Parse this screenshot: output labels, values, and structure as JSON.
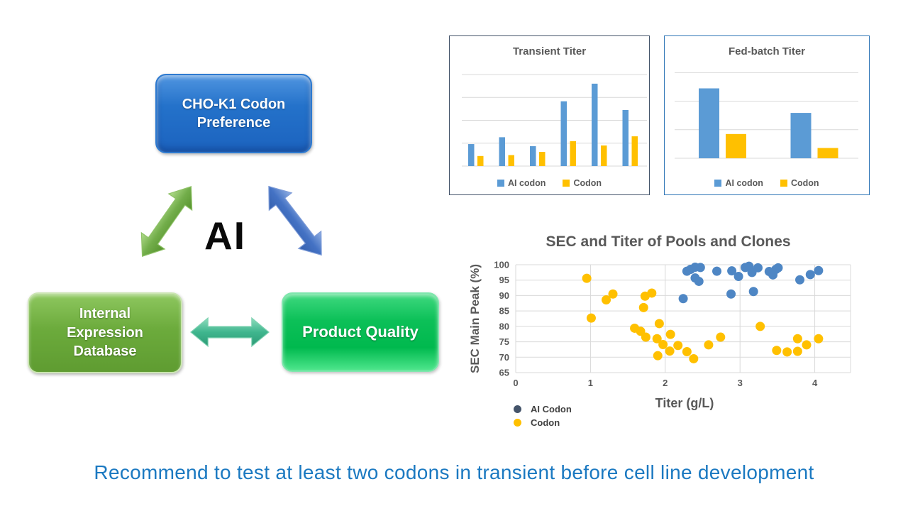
{
  "diagram": {
    "ai_label": "AI",
    "boxes": [
      {
        "id": "cho",
        "label": "CHO-K1 Codon Preference",
        "color": "#2472ca"
      },
      {
        "id": "internal",
        "label": "Internal Expression Database",
        "color": "#6cab3c"
      },
      {
        "id": "product",
        "label": "Product Quality",
        "color": "#0cc058"
      }
    ],
    "arrows": [
      {
        "name": "green-double-arrow",
        "color": "#72ad4a"
      },
      {
        "name": "blue-double-arrow",
        "color": "#4472c4"
      },
      {
        "name": "teal-double-arrow",
        "color": "#3fb68e"
      }
    ]
  },
  "chart_data": [
    {
      "type": "bar",
      "title": "Transient Titer",
      "categories": [
        "",
        "",
        "",
        "",
        "",
        ""
      ],
      "series": [
        {
          "name": "AI codon",
          "color": "#5b9bd5",
          "values": [
            0.96,
            1.26,
            0.87,
            2.83,
            3.6,
            2.45
          ]
        },
        {
          "name": "Codon",
          "color": "#ffc000",
          "values": [
            0.44,
            0.48,
            0.62,
            1.09,
            0.9,
            1.3
          ]
        }
      ],
      "ylim": [
        0,
        4
      ],
      "value_units": "relative (no axis labels shown, gridline spacing = 1)",
      "grid": true,
      "legend_position": "bottom"
    },
    {
      "type": "bar",
      "title": "Fed-batch Titer",
      "categories": [
        "",
        ""
      ],
      "series": [
        {
          "name": "AI codon",
          "color": "#5b9bd5",
          "values": [
            2.45,
            1.59
          ]
        },
        {
          "name": "Codon",
          "color": "#ffc000",
          "values": [
            0.85,
            0.36
          ]
        }
      ],
      "ylim": [
        0,
        3
      ],
      "value_units": "relative (no axis labels shown, gridline spacing = 1)",
      "grid": true,
      "legend_position": "bottom"
    },
    {
      "type": "scatter",
      "title": "SEC and Titer of Pools and Clones",
      "xlabel": "Titer (g/L)",
      "ylabel": "SEC Main Peak (%)",
      "xlim": [
        0,
        4.48
      ],
      "ylim": [
        65,
        100
      ],
      "xticks": [
        0,
        1,
        2,
        3,
        4
      ],
      "yticks": [
        65,
        70,
        75,
        80,
        85,
        90,
        95,
        100
      ],
      "grid": true,
      "legend_position": "bottom-left",
      "series": [
        {
          "name": "AI Codon",
          "color": "#4e86c4",
          "legend_color": "#44546a",
          "points": [
            [
              2.24,
              89.0
            ],
            [
              2.29,
              97.9
            ],
            [
              2.34,
              98.5
            ],
            [
              2.4,
              99.2
            ],
            [
              2.47,
              99.1
            ],
            [
              2.4,
              95.7
            ],
            [
              2.45,
              94.6
            ],
            [
              2.69,
              97.9
            ],
            [
              2.88,
              90.5
            ],
            [
              2.89,
              98.0
            ],
            [
              2.98,
              96.2
            ],
            [
              3.07,
              99.1
            ],
            [
              3.12,
              99.5
            ],
            [
              3.16,
              97.5
            ],
            [
              3.18,
              91.3
            ],
            [
              3.24,
              99.0
            ],
            [
              3.39,
              97.8
            ],
            [
              3.44,
              96.7
            ],
            [
              3.48,
              98.5
            ],
            [
              3.51,
              99.0
            ],
            [
              3.8,
              95.1
            ],
            [
              3.94,
              96.8
            ],
            [
              4.05,
              98.1
            ]
          ]
        },
        {
          "name": "Codon",
          "color": "#ffc000",
          "legend_color": "#ffc000",
          "points": [
            [
              0.95,
              95.6
            ],
            [
              1.01,
              82.7
            ],
            [
              1.21,
              88.6
            ],
            [
              1.3,
              90.5
            ],
            [
              1.59,
              79.4
            ],
            [
              1.67,
              78.4
            ],
            [
              1.71,
              86.1
            ],
            [
              1.73,
              89.8
            ],
            [
              1.74,
              76.5
            ],
            [
              1.82,
              90.8
            ],
            [
              1.89,
              76.0
            ],
            [
              1.9,
              70.5
            ],
            [
              1.92,
              80.9
            ],
            [
              1.97,
              74.1
            ],
            [
              2.06,
              72.0
            ],
            [
              2.07,
              77.4
            ],
            [
              2.17,
              73.8
            ],
            [
              2.29,
              71.8
            ],
            [
              2.38,
              69.5
            ],
            [
              2.58,
              74.0
            ],
            [
              2.74,
              76.5
            ],
            [
              3.27,
              80.0
            ],
            [
              3.49,
              72.2
            ],
            [
              3.63,
              71.7
            ],
            [
              3.77,
              76.0
            ],
            [
              3.77,
              71.9
            ],
            [
              3.89,
              74.0
            ],
            [
              4.05,
              76.0
            ]
          ]
        }
      ]
    }
  ],
  "recommendation": "Recommend to test at least two codons in transient before cell line development"
}
